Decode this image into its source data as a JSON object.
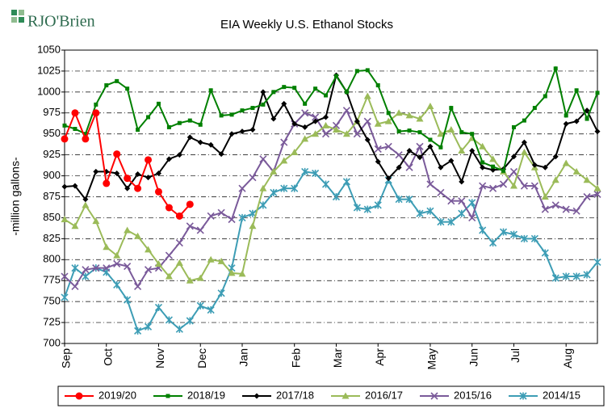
{
  "logo": "RJO'Brien",
  "chart_data": {
    "type": "line",
    "title": "EIA Weekly U.S. Ethanol Stocks",
    "y_label": "-million gallons-",
    "categories": [
      "Sep",
      null,
      null,
      null,
      "Oct",
      null,
      null,
      null,
      null,
      "Nov",
      null,
      null,
      null,
      "Dec",
      null,
      null,
      null,
      "Jan",
      null,
      null,
      null,
      null,
      "Feb",
      null,
      null,
      null,
      "Mar",
      null,
      null,
      null,
      "Apr",
      null,
      null,
      null,
      null,
      "May",
      null,
      null,
      null,
      "Jun",
      null,
      null,
      null,
      "Jul",
      null,
      null,
      null,
      null,
      "Aug",
      null,
      null,
      null
    ],
    "ylim": [
      700,
      1050
    ],
    "yticks": [
      700,
      725,
      750,
      775,
      800,
      825,
      850,
      875,
      900,
      925,
      950,
      975,
      1000,
      1025,
      1050
    ],
    "grid": true,
    "legend": "bottom",
    "series": [
      {
        "name": "2019/20",
        "color": "#ff0000",
        "marker": "circle",
        "values": [
          944,
          975,
          944,
          975,
          891,
          926,
          897,
          885,
          919,
          881,
          862,
          852,
          866,
          null,
          null,
          null,
          null,
          null,
          null,
          null,
          null,
          null,
          null,
          null,
          null,
          null,
          null,
          null,
          null,
          null,
          null,
          null,
          null,
          null,
          null,
          null,
          null,
          null,
          null,
          null,
          null,
          null,
          null,
          null,
          null,
          null,
          null,
          null,
          null,
          null,
          null,
          null
        ]
      },
      {
        "name": "2018/19",
        "color": "#008000",
        "marker": "square",
        "values": [
          960,
          956,
          950,
          985,
          1008,
          1013,
          1004,
          955,
          970,
          986,
          958,
          963,
          966,
          961,
          1002,
          972,
          973,
          978,
          981,
          985,
          1000,
          1006,
          1005,
          986,
          1004,
          996,
          1019,
          1000,
          1025,
          1026,
          1008,
          975,
          953,
          954,
          952,
          943,
          934,
          981,
          952,
          950,
          916,
          911,
          906,
          958,
          966,
          981,
          995,
          1028,
          972,
          1002,
          968,
          999
        ]
      },
      {
        "name": "2017/18",
        "color": "#000000",
        "marker": "diamond",
        "values": [
          887,
          888,
          872,
          905,
          905,
          903,
          885,
          902,
          898,
          903,
          920,
          925,
          946,
          940,
          937,
          926,
          950,
          953,
          955,
          1000,
          968,
          986,
          962,
          958,
          965,
          970,
          1020,
          1000,
          965,
          943,
          917,
          897,
          910,
          930,
          922,
          935,
          910,
          918,
          893,
          930,
          910,
          907,
          908,
          923,
          940,
          913,
          910,
          923,
          962,
          965,
          978,
          953
        ]
      },
      {
        "name": "2016/17",
        "color": "#9bbb59",
        "marker": "triangle",
        "values": [
          848,
          840,
          865,
          846,
          815,
          805,
          835,
          828,
          812,
          795,
          780,
          796,
          775,
          778,
          800,
          798,
          784,
          783,
          840,
          885,
          905,
          918,
          928,
          944,
          950,
          960,
          955,
          950,
          965,
          995,
          962,
          965,
          975,
          972,
          968,
          983,
          950,
          955,
          930,
          945,
          935,
          920,
          905,
          888,
          928,
          910,
          875,
          895,
          915,
          905,
          895,
          885
        ]
      },
      {
        "name": "2015/16",
        "color": "#7a5a9a",
        "marker": "x",
        "values": [
          780,
          768,
          788,
          790,
          790,
          795,
          792,
          768,
          788,
          790,
          805,
          820,
          840,
          835,
          852,
          856,
          848,
          885,
          898,
          920,
          905,
          940,
          962,
          975,
          970,
          950,
          960,
          978,
          950,
          965,
          932,
          935,
          925,
          910,
          935,
          890,
          880,
          870,
          870,
          850,
          888,
          885,
          890,
          905,
          888,
          888,
          860,
          865,
          860,
          858,
          875,
          878
        ]
      },
      {
        "name": "2014/15",
        "color": "#3d9db5",
        "marker": "star",
        "values": [
          755,
          790,
          780,
          790,
          785,
          770,
          752,
          715,
          720,
          743,
          728,
          717,
          727,
          745,
          740,
          760,
          790,
          850,
          855,
          865,
          880,
          885,
          885,
          905,
          903,
          890,
          875,
          893,
          862,
          860,
          865,
          895,
          872,
          872,
          855,
          858,
          845,
          845,
          855,
          868,
          835,
          820,
          833,
          830,
          825,
          825,
          808,
          778,
          780,
          780,
          782,
          797
        ]
      }
    ]
  }
}
